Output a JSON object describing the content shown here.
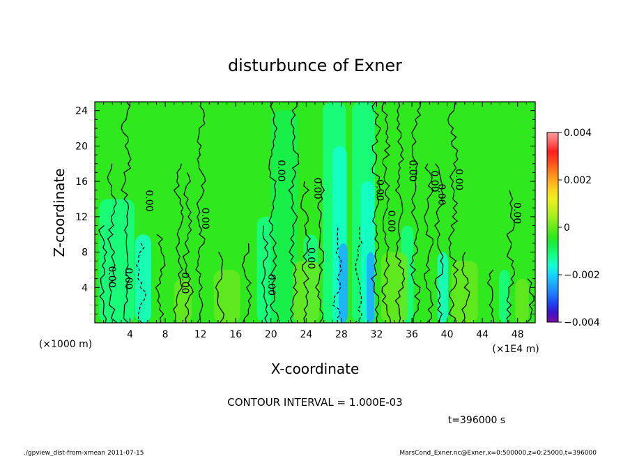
{
  "chart_data": {
    "type": "heatmap",
    "title": "disturbunce of Exner",
    "xlabel": "X-coordinate",
    "ylabel": "Z-coordinate",
    "x_unit_label": "(×1E4 m)",
    "y_unit_label": "(×1000 m)",
    "x_ticks": [
      "4",
      "8",
      "12",
      "16",
      "20",
      "24",
      "28",
      "32",
      "36",
      "40",
      "44",
      "48"
    ],
    "y_ticks": [
      "4",
      "8",
      "12",
      "16",
      "20",
      "24"
    ],
    "xlim": [
      0,
      50
    ],
    "ylim": [
      0,
      25
    ],
    "contour_label": "0.00",
    "contour_interval": "CONTOUR INTERVAL = 1.000E-03",
    "time_label": "t=396000 s",
    "colorbar": {
      "ticks": [
        "0.004",
        "0.002",
        "0",
        "−0.002",
        "−0.004"
      ],
      "range": [
        -0.004,
        0.004
      ],
      "colors": [
        "#7b0f9e",
        "#3a14c8",
        "#1e46f0",
        "#1e7cff",
        "#1ea8ff",
        "#14d8ff",
        "#14ffcf",
        "#14ff88",
        "#14f050",
        "#2fe81e",
        "#69e81e",
        "#9cf01e",
        "#c8f01e",
        "#f0f01e",
        "#ffd21e",
        "#ffa81e",
        "#ff781e",
        "#ff461e",
        "#ff1e1e",
        "#ff6464",
        "#ff9b9b"
      ]
    },
    "footer_left": "./gpview_dist-from-xmean  2011-07-15",
    "footer_right": "MarsCond_Exner.nc@Exner,x=0:500000,z=0:25000,t=396000"
  }
}
